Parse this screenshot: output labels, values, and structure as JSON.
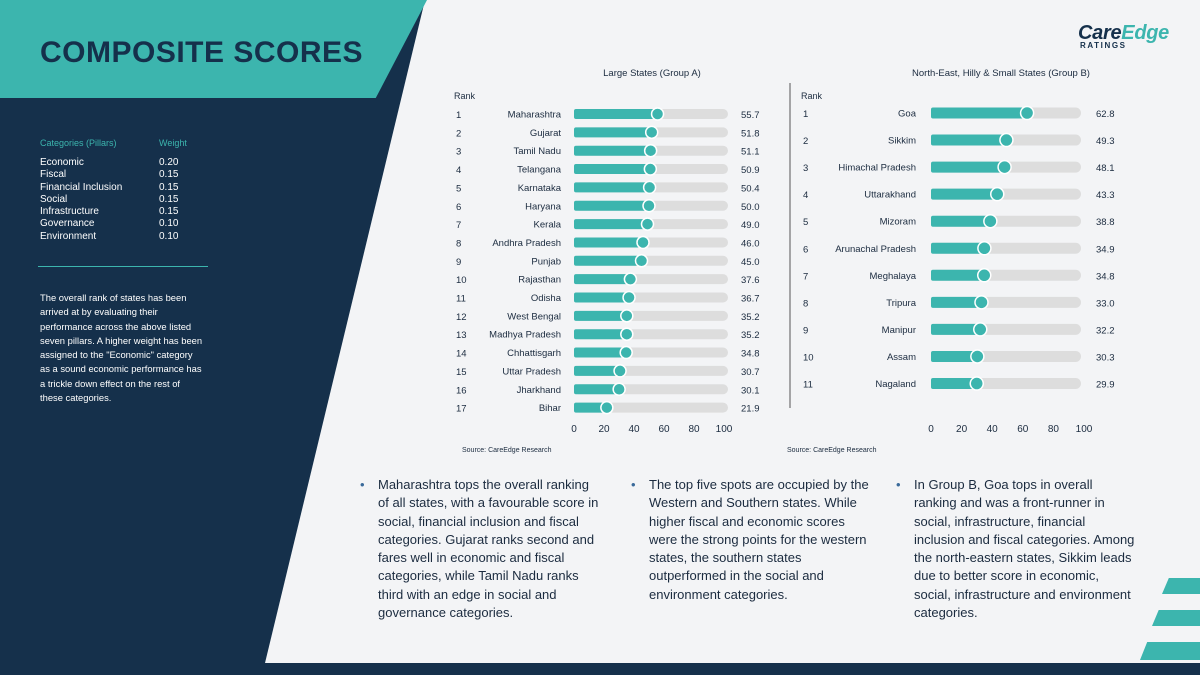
{
  "page": {
    "title": "COMPOSITE SCORES"
  },
  "logo": {
    "care": "Care",
    "edge": "Edge",
    "ratings": "RATINGS"
  },
  "sidebar": {
    "header_category": "Categories (Pillars)",
    "header_weight": "Weight",
    "categories": [
      {
        "name": "Economic",
        "weight": "0.20"
      },
      {
        "name": "Fiscal",
        "weight": "0.15"
      },
      {
        "name": "Financial Inclusion",
        "weight": "0.15"
      },
      {
        "name": "Social",
        "weight": "0.15"
      },
      {
        "name": "Infrastructure",
        "weight": "0.15"
      },
      {
        "name": "Governance",
        "weight": "0.10"
      },
      {
        "name": "Environment",
        "weight": "0.10"
      }
    ],
    "note": "The overall rank of states has been arrived at by evaluating their performance across the above listed seven pillars. A higher weight has been assigned to the \"Economic\" category as a sound economic performance has a trickle down effect on the rest of these categories."
  },
  "chart_data": [
    {
      "type": "bar",
      "orientation": "horizontal",
      "title": "Large States (Group A)",
      "rank_label": "Rank",
      "ranks": [
        "1",
        "2",
        "3",
        "4",
        "5",
        "6",
        "7",
        "8",
        "9",
        "10",
        "11",
        "12",
        "13",
        "14",
        "15",
        "16",
        "17"
      ],
      "categories": [
        "Maharashtra",
        "Gujarat",
        "Tamil Nadu",
        "Telangana",
        "Karnataka",
        "Haryana",
        "Kerala",
        "Andhra Pradesh",
        "Punjab",
        "Rajasthan",
        "Odisha",
        "West Bengal",
        "Madhya Pradesh",
        "Chhattisgarh",
        "Uttar Pradesh",
        "Jharkhand",
        "Bihar"
      ],
      "values": [
        55.7,
        51.8,
        51.1,
        50.9,
        50.4,
        50.0,
        49.0,
        46.0,
        45.0,
        37.6,
        36.7,
        35.2,
        35.2,
        34.8,
        30.7,
        30.1,
        21.9
      ],
      "value_labels": [
        "55.7",
        "51.8",
        "51.1",
        "50.9",
        "50.4",
        "50.0",
        "49.0",
        "46.0",
        "45.0",
        "37.6",
        "36.7",
        "35.2",
        "35.2",
        "34.8",
        "30.7",
        "30.1",
        "21.9"
      ],
      "xlim": [
        0,
        100
      ],
      "xticks": [
        "0",
        "20",
        "40",
        "60",
        "80",
        "100"
      ],
      "source": "Source: CareEdge Research",
      "colors": {
        "bar": "#3cb5ae",
        "track": "#dddddd",
        "marker": "#3cb5ae"
      }
    },
    {
      "type": "bar",
      "orientation": "horizontal",
      "title": "North-East, Hilly & Small States (Group B)",
      "rank_label": "Rank",
      "ranks": [
        "1",
        "2",
        "3",
        "4",
        "5",
        "6",
        "7",
        "8",
        "9",
        "10",
        "11"
      ],
      "categories": [
        "Goa",
        "Sikkim",
        "Himachal Pradesh",
        "Uttarakhand",
        "Mizoram",
        "Arunachal Pradesh",
        "Meghalaya",
        "Tripura",
        "Manipur",
        "Assam",
        "Nagaland"
      ],
      "values": [
        62.8,
        49.3,
        48.1,
        43.3,
        38.8,
        34.9,
        34.8,
        33.0,
        32.2,
        30.3,
        29.9
      ],
      "value_labels": [
        "62.8",
        "49.3",
        "48.1",
        "43.3",
        "38.8",
        "34.9",
        "34.8",
        "33.0",
        "32.2",
        "30.3",
        "29.9"
      ],
      "xlim": [
        0,
        100
      ],
      "xticks": [
        "0",
        "20",
        "40",
        "60",
        "80",
        "100"
      ],
      "source": "Source: CareEdge Research",
      "colors": {
        "bar": "#3cb5ae",
        "track": "#dddddd",
        "marker": "#3cb5ae"
      }
    }
  ],
  "bullets": [
    {
      "text": "Maharashtra tops the overall ranking of all states, with a favourable score in social, financial inclusion and fiscal categories. Gujarat ranks second and fares well in economic and fiscal categories, while Tamil Nadu ranks third with an edge in social and governance categories."
    },
    {
      "text": "The top five spots are occupied by the Western and Southern states. While higher fiscal and economic scores were the strong points for the western states, the southern states outperformed in the social and environment categories."
    },
    {
      "text": "In Group B, Goa tops in overall ranking and was a front-runner in social, infrastructure, financial inclusion and fiscal categories. Among the north-eastern states, Sikkim leads due to better score in economic, social, infrastructure and environment categories."
    }
  ]
}
